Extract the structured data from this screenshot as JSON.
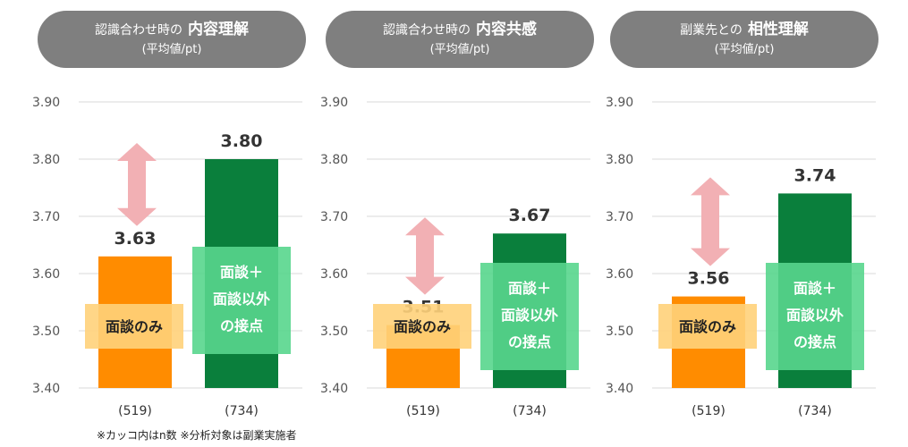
{
  "chart_data": [
    {
      "type": "bar",
      "title_prefix": "認識合わせ時の",
      "title_main": "内容理解",
      "subtitle": "(平均値/pt)",
      "ylim": [
        3.4,
        3.9
      ],
      "yticks": [
        "3.90",
        "3.80",
        "3.70",
        "3.60",
        "3.50",
        "3.40"
      ],
      "categories": [
        "(519)",
        "(734)"
      ],
      "values": [
        3.63,
        3.8
      ],
      "value_labels": [
        "3.63",
        "3.80"
      ],
      "series_labels": [
        "面談のみ",
        "面談＋\n面談以外\nの接点"
      ],
      "grid": true
    },
    {
      "type": "bar",
      "title_prefix": "認識合わせ時の",
      "title_main": "内容共感",
      "subtitle": "(平均値/pt)",
      "ylim": [
        3.4,
        3.9
      ],
      "yticks": [
        "3.90",
        "3.80",
        "3.70",
        "3.60",
        "3.50",
        "3.40"
      ],
      "categories": [
        "(519)",
        "(734)"
      ],
      "values": [
        3.51,
        3.67
      ],
      "value_labels": [
        "3.51",
        "3.67"
      ],
      "series_labels": [
        "面談のみ",
        "面談＋\n面談以外\nの接点"
      ],
      "grid": true
    },
    {
      "type": "bar",
      "title_prefix": "副業先との",
      "title_main": "相性理解",
      "subtitle": "(平均値/pt)",
      "ylim": [
        3.4,
        3.9
      ],
      "yticks": [
        "3.90",
        "3.80",
        "3.70",
        "3.60",
        "3.50",
        "3.40"
      ],
      "categories": [
        "(519)",
        "(734)"
      ],
      "values": [
        3.56,
        3.74
      ],
      "value_labels": [
        "3.56",
        "3.74"
      ],
      "series_labels": [
        "面談のみ",
        "面談＋\n面談以外\nの接点"
      ],
      "grid": true
    }
  ],
  "colors": {
    "bar_a": "#ff8c00",
    "bar_b": "#0a7f3c",
    "label_a_bg": "#ffd27a",
    "label_b_bg": "#58d68d",
    "arrow": "#f2b0b4",
    "pill": "#7f7f7f",
    "grid": "#d9d9d9"
  },
  "footnote": "※カッコ内はn数 ※分析対象は副業実施者"
}
